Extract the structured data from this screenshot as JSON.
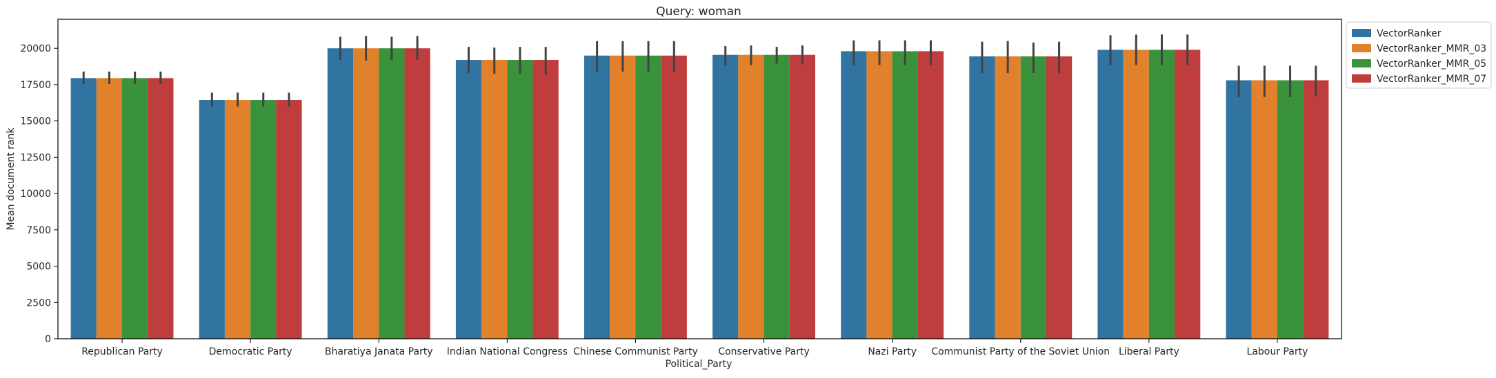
{
  "chart_data": {
    "type": "bar",
    "title": "Query: woman",
    "xlabel": "Political_Party",
    "ylabel": "Mean document rank",
    "ylim": [
      0,
      22000
    ],
    "yticks": [
      0,
      2500,
      5000,
      7500,
      10000,
      12500,
      15000,
      17500,
      20000
    ],
    "grid": false,
    "legend_position": "outside top-right",
    "categories": [
      "Republican Party",
      "Democratic Party",
      "Bharatiya Janata Party",
      "Indian National Congress",
      "Chinese Communist Party",
      "Conservative Party",
      "Nazi Party",
      "Communist Party of the Soviet Union",
      "Liberal Party",
      "Labour Party"
    ],
    "series": [
      {
        "name": "VectorRanker",
        "color": "#3274a1",
        "values": [
          17950,
          16450,
          20000,
          19200,
          19500,
          19550,
          19800,
          19450,
          19900,
          17800
        ],
        "err_low": [
          17550,
          16000,
          19200,
          18300,
          18400,
          18850,
          18850,
          18300,
          18850,
          16650
        ],
        "err_high": [
          18400,
          16950,
          20800,
          20100,
          20500,
          20150,
          20550,
          20450,
          20900,
          18800
        ]
      },
      {
        "name": "VectorRanker_MMR_03",
        "color": "#e1812c",
        "values": [
          17950,
          16450,
          20000,
          19200,
          19500,
          19550,
          19800,
          19450,
          19900,
          17800
        ],
        "err_low": [
          17550,
          16000,
          19150,
          18250,
          18400,
          18850,
          18850,
          18300,
          18850,
          16650
        ],
        "err_high": [
          18400,
          16950,
          20850,
          20050,
          20500,
          20200,
          20550,
          20500,
          20950,
          18800
        ]
      },
      {
        "name": "VectorRanker_MMR_05",
        "color": "#3a923a",
        "values": [
          17950,
          16450,
          20000,
          19200,
          19500,
          19550,
          19800,
          19450,
          19900,
          17800
        ],
        "err_low": [
          17550,
          16000,
          19200,
          18250,
          18400,
          18950,
          18850,
          18300,
          18850,
          16650
        ],
        "err_high": [
          18400,
          16950,
          20800,
          20100,
          20500,
          20100,
          20550,
          20400,
          20950,
          18800
        ]
      },
      {
        "name": "VectorRanker_MMR_07",
        "color": "#c03d3e",
        "values": [
          17950,
          16450,
          20000,
          19200,
          19500,
          19550,
          19800,
          19450,
          19900,
          17800
        ],
        "err_low": [
          17550,
          16000,
          19200,
          18200,
          18400,
          18900,
          18850,
          18300,
          18850,
          16700
        ],
        "err_high": [
          18400,
          16950,
          20850,
          20100,
          20500,
          20200,
          20550,
          20450,
          20950,
          18800
        ]
      }
    ]
  }
}
